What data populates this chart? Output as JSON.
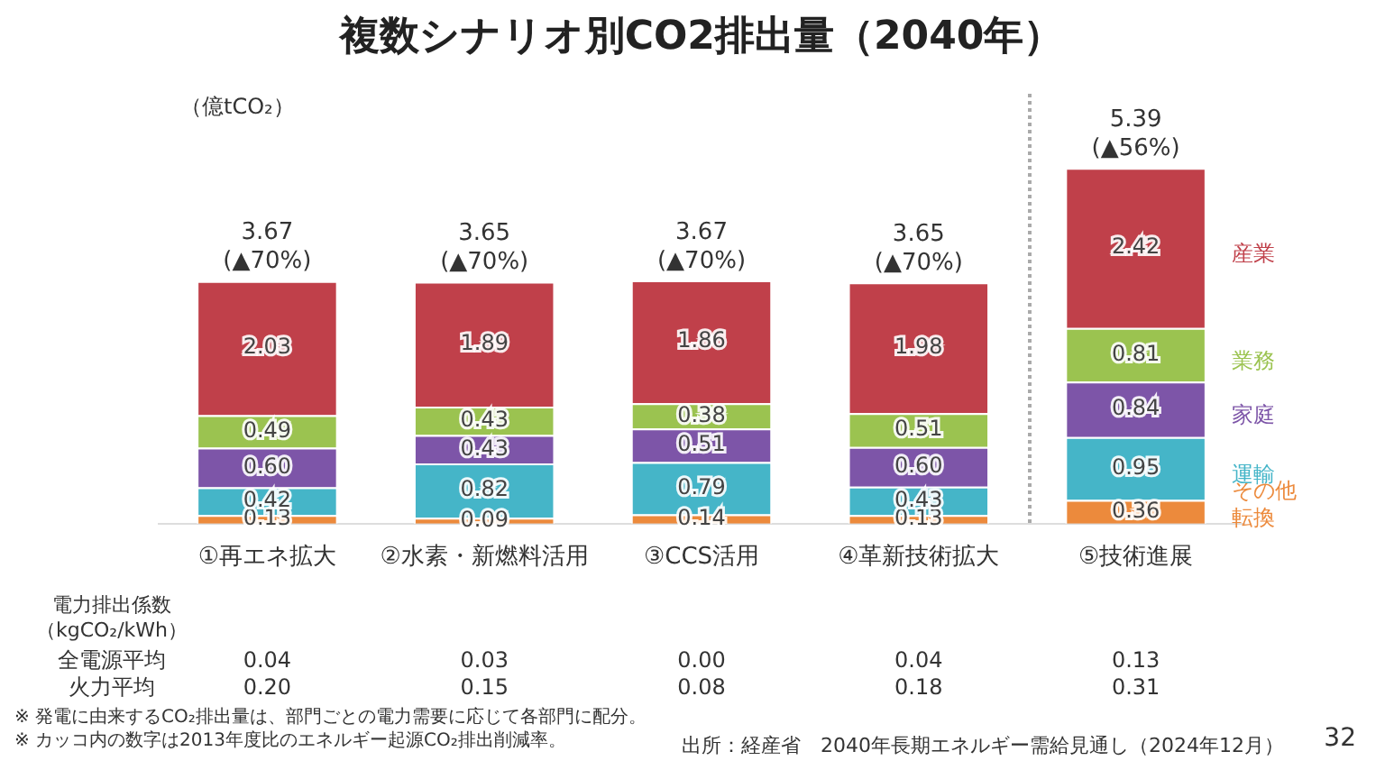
{
  "chart_data": {
    "type": "bar",
    "stacked": true,
    "title": "複数シナリオ別CO2排出量（2040年）",
    "ylabel": "（億tCO₂）",
    "categories": [
      "①再エネ拡大",
      "②水素・新燃料活用",
      "③CCS活用",
      "④革新技術拡大",
      "⑤技術進展"
    ],
    "series": [
      {
        "name": "その他転換",
        "color": "#ec8a3c",
        "values": [
          0.13,
          0.09,
          0.14,
          0.13,
          0.36
        ],
        "value_labels": [
          "0.13",
          "0.09",
          "0.14",
          "0.13",
          "0.36"
        ]
      },
      {
        "name": "運輸",
        "color": "#45b5c8",
        "values": [
          0.42,
          0.82,
          0.79,
          0.43,
          0.95
        ],
        "value_labels": [
          "0.42",
          "0.82",
          "0.79",
          "0.43",
          "0.95"
        ]
      },
      {
        "name": "家庭",
        "color": "#7d55a8",
        "values": [
          0.6,
          0.43,
          0.51,
          0.6,
          0.84
        ],
        "value_labels": [
          "0.60",
          "0.43",
          "0.51",
          "0.60",
          "0.84"
        ]
      },
      {
        "name": "業務",
        "color": "#9bc350",
        "values": [
          0.49,
          0.43,
          0.38,
          0.51,
          0.81
        ],
        "value_labels": [
          "0.49",
          "0.43",
          "0.38",
          "0.51",
          "0.81"
        ]
      },
      {
        "name": "産業",
        "color": "#c0404a",
        "values": [
          2.03,
          1.89,
          1.86,
          1.98,
          2.42
        ],
        "value_labels": [
          "2.03",
          "1.89",
          "1.86",
          "1.98",
          "2.42"
        ]
      }
    ],
    "tick_labels": "x",
    "grid": false,
    "totals": [
      "3.67\n(▲70%)",
      "3.65\n(▲70%)",
      "3.67\n(▲70%)",
      "3.65\n(▲70%)",
      "5.39\n(▲56%)"
    ],
    "annotations": [
      "電力排出係数（kgCO₂/kWh）",
      "全電源平均\t0.04\t0.03\t0.00\t0.04\t0.13",
      "火力平均\t0.20\t0.15\t0.08\t0.18\t0.31",
      "※ 発電に由来するCO₂排出量は、部門ごとの電力需要に応じて各部門に配分。",
      "※ カッコ内の数字は2013年度比のエネルギー起源CO₂排出削減率。",
      "出所：経産省　2040年長期エネルギー需給見通し（2024年12月）",
      "32"
    ]
  }
}
